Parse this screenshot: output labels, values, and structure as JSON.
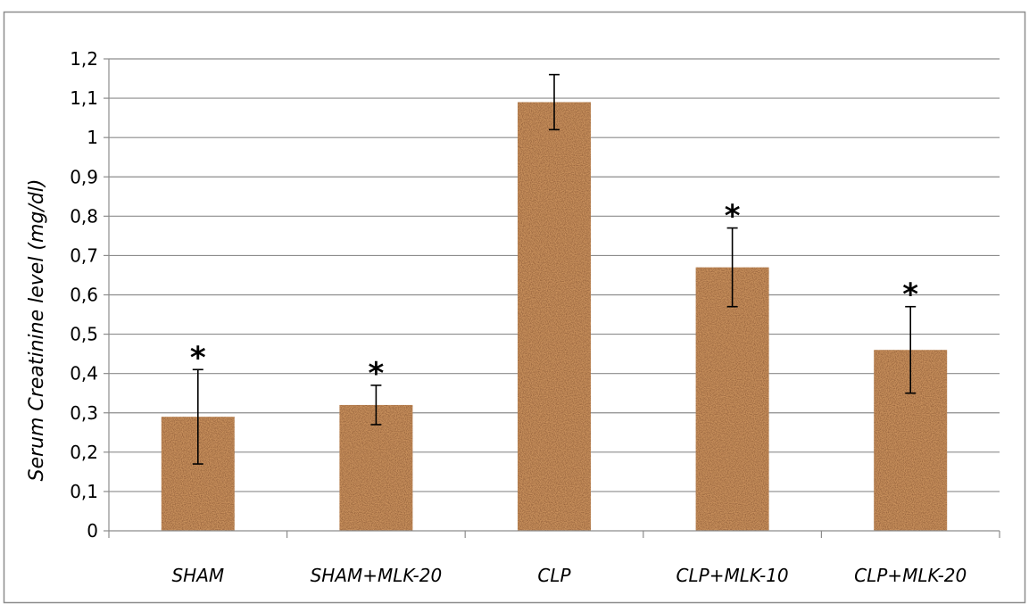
{
  "chart_data": {
    "type": "bar",
    "title": "",
    "xlabel": "",
    "ylabel": "Serum Creatinine level (mg/dl)",
    "categories": [
      "SHAM",
      "SHAM+MLK-20",
      "CLP",
      "CLP+MLK-10",
      "CLP+MLK-20"
    ],
    "values": [
      0.29,
      0.32,
      1.09,
      0.67,
      0.46
    ],
    "error": [
      0.12,
      0.05,
      0.07,
      0.1,
      0.11
    ],
    "significance": [
      "*",
      "*",
      "",
      "*",
      "*"
    ],
    "ylim": [
      0,
      1.2
    ],
    "y_ticks": [
      "0",
      "0,1",
      "0,2",
      "0,3",
      "0,4",
      "0,5",
      "0,6",
      "0,7",
      "0,8",
      "0,9",
      "1",
      "1,1",
      "1,2"
    ],
    "y_tick_values": [
      0,
      0.1,
      0.2,
      0.3,
      0.4,
      0.5,
      0.6,
      0.7,
      0.8,
      0.9,
      1.0,
      1.1,
      1.2
    ],
    "grid": true,
    "legend": "none",
    "colors": {
      "bar": "#c8905c",
      "bar_dark": "#8a5530",
      "grid": "#8c8c8c",
      "frame": "#8c8c8c",
      "text": "#000000"
    }
  }
}
